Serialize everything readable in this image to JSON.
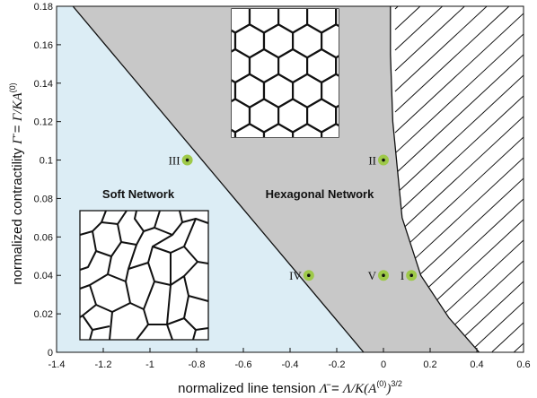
{
  "chart_data": {
    "type": "phase-diagram",
    "xlabel": {
      "prefix": "normalized line tension ",
      "symbol": "Λ̄",
      "eq": " = ",
      "expr": "Λ/K(A",
      "sup_inner": "(0)",
      "close": ")",
      "sup_outer": "3/2"
    },
    "ylabel": {
      "prefix": "normalized contractility ",
      "symbol": "Γ̄",
      "eq": " = ",
      "expr": "Γ/KA",
      "sup": "(0)"
    },
    "xlim": [
      -1.4,
      0.6
    ],
    "ylim": [
      0,
      0.18
    ],
    "xticks": [
      "-1.4",
      "-1.2",
      "-1",
      "-0.8",
      "-0.6",
      "-0.4",
      "-0.2",
      "0",
      "0.2",
      "0.4",
      "0.6"
    ],
    "xtick_values": [
      -1.4,
      -1.2,
      -1.0,
      -0.8,
      -0.6,
      -0.4,
      -0.2,
      0.0,
      0.2,
      0.4,
      0.6
    ],
    "yticks": [
      "0",
      "0.02",
      "0.04",
      "0.06",
      "0.08",
      "0.1",
      "0.12",
      "0.14",
      "0.16",
      "0.18"
    ],
    "ytick_values": [
      0,
      0.02,
      0.04,
      0.06,
      0.08,
      0.1,
      0.12,
      0.14,
      0.16,
      0.18
    ],
    "regions": [
      {
        "label": "Soft Network",
        "color": "#dcedf5",
        "boundary": [
          [
            -1.33,
            0.18
          ],
          [
            -0.085,
            0
          ]
        ]
      },
      {
        "label": "Hexagonal Network",
        "color": "#c8c8c8",
        "boundary": [
          [
            0.03,
            0.18
          ],
          [
            0.03,
            0.155
          ],
          [
            0.04,
            0.12
          ],
          [
            0.08,
            0.07
          ],
          [
            0.16,
            0.04
          ],
          [
            0.28,
            0.018
          ],
          [
            0.41,
            0
          ]
        ]
      }
    ],
    "hatched_region_color": "#111111",
    "points": [
      {
        "label": "I",
        "x": 0.12,
        "y": 0.04
      },
      {
        "label": "II",
        "x": 0.0,
        "y": 0.1
      },
      {
        "label": "III",
        "x": -0.84,
        "y": 0.1
      },
      {
        "label": "IV",
        "x": -0.32,
        "y": 0.04
      },
      {
        "label": "V",
        "x": 0.0,
        "y": 0.04
      }
    ],
    "point_color": "#9ec949",
    "insets": [
      "hexagonal-network-inset",
      "soft-network-inset"
    ]
  }
}
